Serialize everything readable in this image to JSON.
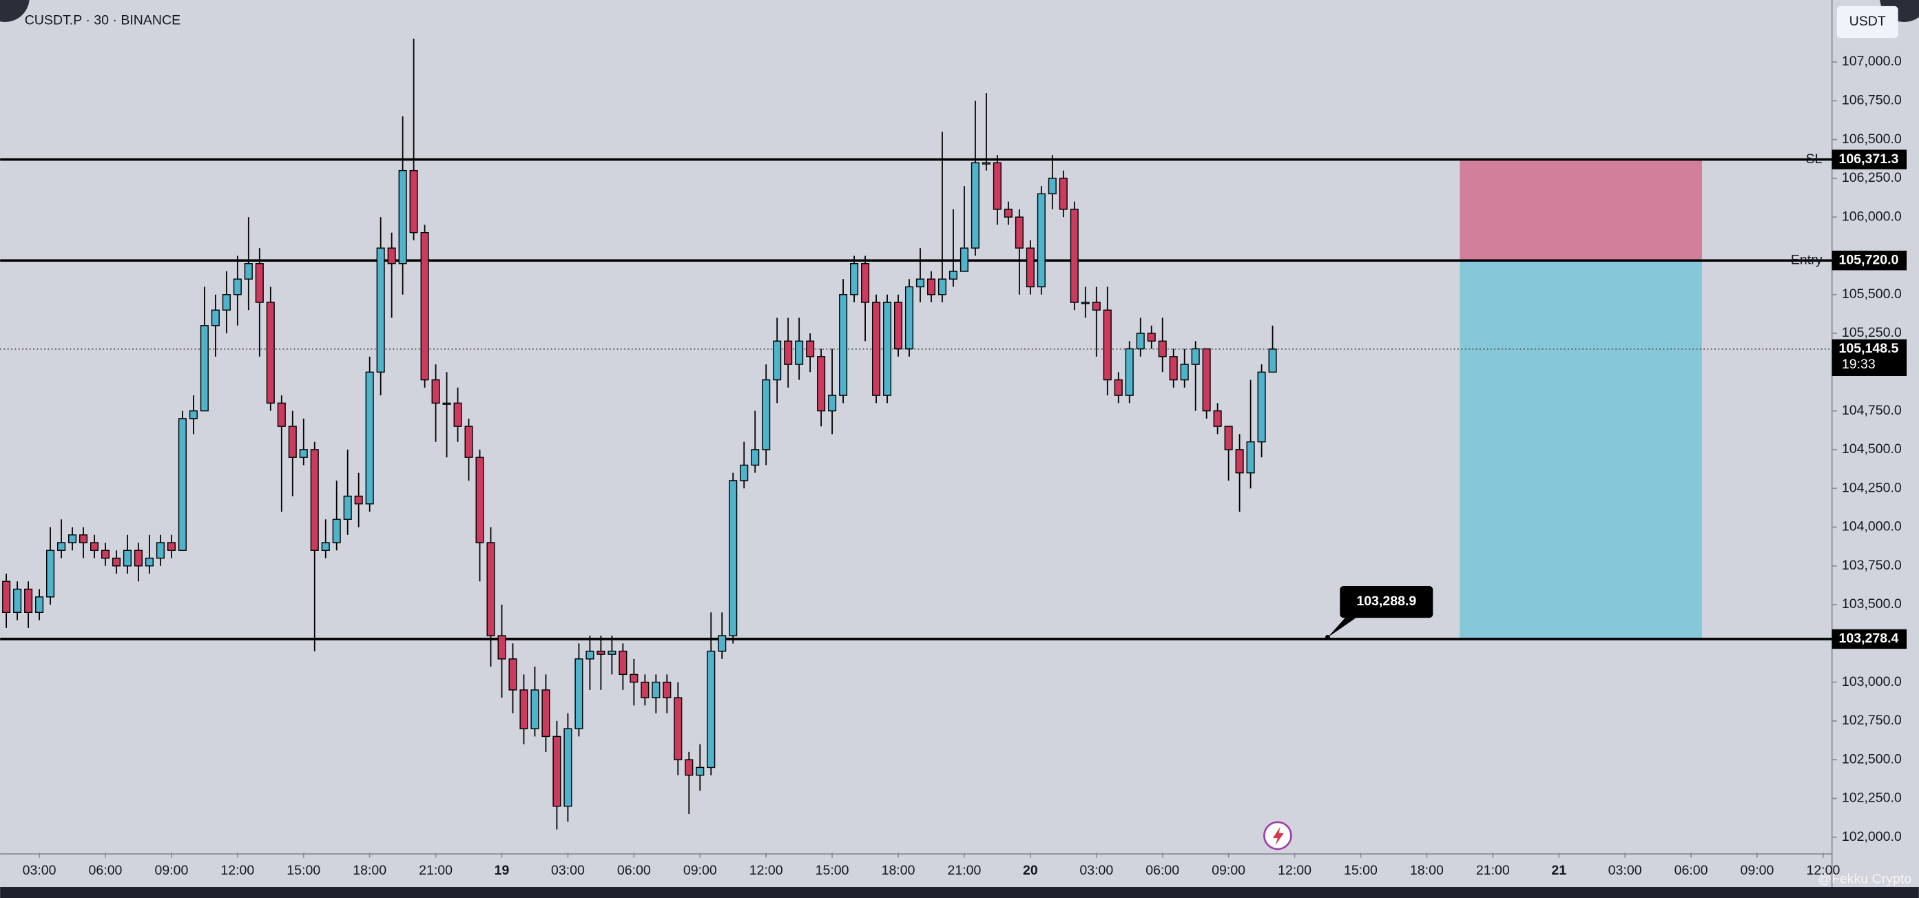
{
  "chart_data": {
    "type": "candlestick",
    "title": "CUSDT.P · 30 · BINANCE",
    "currency": "USDT",
    "watermark": "@Fekku Crypto",
    "up_color": "#4fb3cc",
    "down_color": "#cc3b5e",
    "xlim": [
      -0.56,
      165.8
    ],
    "ylim": [
      101900,
      107400
    ],
    "open": [
      103650,
      103450,
      103600,
      103450,
      103550,
      103850,
      103900,
      103950,
      103900,
      103850,
      103800,
      103750,
      103850,
      103750,
      103800,
      103900,
      103850,
      104700,
      104750,
      105300,
      105400,
      105500,
      105600,
      105700,
      105450,
      104800,
      104650,
      104450,
      104500,
      103850,
      103900,
      104050,
      104200,
      104150,
      105000,
      105800,
      105700,
      106300,
      105900,
      104950,
      104800,
      104800,
      104650,
      104450,
      103900,
      103300,
      103150,
      102950,
      102700,
      102950,
      102650,
      102200,
      102700,
      103150,
      103200,
      103180,
      103200,
      103050,
      103000,
      102900,
      103000,
      102900,
      102500,
      102400,
      102450,
      103200,
      103300,
      104300,
      104400,
      104500,
      104950,
      105200,
      105050,
      105200,
      105100,
      104750,
      104850,
      105500,
      105700,
      105450,
      104850,
      105450,
      105150,
      105550,
      105600,
      105500,
      105600,
      105650,
      105800,
      106350,
      106350,
      106050,
      106000,
      105800,
      105550,
      106150,
      106250,
      106050,
      105450,
      105450,
      105400,
      104950,
      104850,
      105150,
      105250,
      105200,
      105100,
      104950,
      105050,
      105150,
      104750,
      104650,
      104500,
      104350,
      104550,
      105000
    ],
    "high": [
      103700,
      103650,
      103650,
      103600,
      104000,
      104050,
      104000,
      104000,
      103950,
      103900,
      103850,
      103950,
      103900,
      103950,
      103950,
      103950,
      104750,
      104850,
      105550,
      105500,
      105650,
      105750,
      106000,
      105800,
      105550,
      104850,
      104750,
      104700,
      104550,
      104050,
      104300,
      104500,
      104350,
      105100,
      106000,
      105900,
      106650,
      107150,
      105950,
      105050,
      105000,
      104900,
      104700,
      104500,
      104000,
      103500,
      103250,
      103050,
      103100,
      103050,
      102750,
      102800,
      103250,
      103300,
      103300,
      103300,
      103250,
      103150,
      103050,
      103050,
      103050,
      103000,
      102550,
      102600,
      103450,
      103450,
      104350,
      104550,
      104750,
      105050,
      105350,
      105350,
      105350,
      105250,
      105150,
      105150,
      105600,
      105750,
      105750,
      105500,
      105500,
      105500,
      105600,
      105800,
      105650,
      106550,
      106050,
      106200,
      106750,
      106800,
      106400,
      106100,
      106050,
      105850,
      106200,
      106400,
      106300,
      106100,
      105550,
      105550,
      105550,
      105000,
      105200,
      105350,
      105300,
      105350,
      105150,
      105150,
      105200,
      105150,
      104800,
      104650,
      104600,
      104950,
      105050,
      105300
    ],
    "low": [
      103350,
      103400,
      103350,
      103400,
      103500,
      103800,
      103850,
      103800,
      103800,
      103750,
      103700,
      103700,
      103650,
      103700,
      103750,
      103800,
      103850,
      104600,
      104750,
      105100,
      105250,
      105300,
      105400,
      105100,
      104750,
      104100,
      104200,
      104400,
      103200,
      103800,
      103850,
      103950,
      104000,
      104100,
      104850,
      105350,
      105500,
      105850,
      104900,
      104550,
      104450,
      104550,
      104300,
      103650,
      103100,
      102900,
      102800,
      102600,
      102650,
      102550,
      102050,
      102100,
      102650,
      102950,
      102950,
      103050,
      102950,
      102850,
      102850,
      102800,
      102800,
      102400,
      102150,
      102300,
      102400,
      103150,
      103250,
      104250,
      104350,
      104400,
      104800,
      104900,
      104950,
      105000,
      104650,
      104600,
      104800,
      105450,
      105200,
      104800,
      104800,
      105100,
      105100,
      105450,
      105450,
      105450,
      105550,
      105650,
      105750,
      106300,
      105950,
      105950,
      105500,
      105500,
      105500,
      106050,
      106000,
      105400,
      105350,
      105100,
      104850,
      104800,
      104800,
      105100,
      105150,
      105000,
      104900,
      104900,
      104750,
      104700,
      104600,
      104300,
      104100,
      104250,
      104450,
      105000
    ],
    "close": [
      103450,
      103600,
      103450,
      103550,
      103850,
      103900,
      103950,
      103900,
      103850,
      103800,
      103750,
      103850,
      103750,
      103800,
      103900,
      103850,
      104700,
      104750,
      105300,
      105400,
      105500,
      105600,
      105700,
      105450,
      104800,
      104650,
      104450,
      104500,
      103850,
      103900,
      104050,
      104200,
      104150,
      105000,
      105800,
      105700,
      106300,
      105900,
      104950,
      104800,
      104800,
      104650,
      104450,
      103900,
      103300,
      103150,
      102950,
      102700,
      102950,
      102650,
      102200,
      102700,
      103150,
      103200,
      103180,
      103200,
      103050,
      103000,
      102900,
      103000,
      102900,
      102500,
      102400,
      102450,
      103200,
      103300,
      104300,
      104400,
      104500,
      104950,
      105200,
      105050,
      105200,
      105100,
      104750,
      104850,
      105500,
      105700,
      105450,
      104850,
      105450,
      105150,
      105550,
      105600,
      105500,
      105600,
      105650,
      105800,
      106350,
      106350,
      106050,
      106000,
      105800,
      105550,
      106150,
      106250,
      106050,
      105450,
      105450,
      105400,
      104950,
      104850,
      105150,
      105250,
      105200,
      105100,
      104950,
      105050,
      105150,
      104750,
      104650,
      104500,
      104350,
      104550,
      105000,
      105148.5
    ],
    "yticks": [
      {
        "value": 107000,
        "label": "107,000.0"
      },
      {
        "value": 106750,
        "label": "106,750.0"
      },
      {
        "value": 106500,
        "label": "106,500.0"
      },
      {
        "value": 106250,
        "label": "106,250.0"
      },
      {
        "value": 106000,
        "label": "106,000.0"
      },
      {
        "value": 105500,
        "label": "105,500.0"
      },
      {
        "value": 105250,
        "label": "105,250.0"
      },
      {
        "value": 104750,
        "label": "104,750.0"
      },
      {
        "value": 104500,
        "label": "104,500.0"
      },
      {
        "value": 104250,
        "label": "104,250.0"
      },
      {
        "value": 104000,
        "label": "104,000.0"
      },
      {
        "value": 103750,
        "label": "103,750.0"
      },
      {
        "value": 103500,
        "label": "103,500.0"
      },
      {
        "value": 103000,
        "label": "103,000.0"
      },
      {
        "value": 102750,
        "label": "102,750.0"
      },
      {
        "value": 102500,
        "label": "102,500.0"
      },
      {
        "value": 102250,
        "label": "102,250.0"
      },
      {
        "value": 102000,
        "label": "102,000.0"
      }
    ],
    "xticks": [
      {
        "value": 3,
        "label": "03:00"
      },
      {
        "value": 9,
        "label": "06:00"
      },
      {
        "value": 15,
        "label": "09:00"
      },
      {
        "value": 21,
        "label": "12:00"
      },
      {
        "value": 27,
        "label": "15:00"
      },
      {
        "value": 33,
        "label": "18:00"
      },
      {
        "value": 39,
        "label": "21:00"
      },
      {
        "value": 45,
        "label": "19"
      },
      {
        "value": 51,
        "label": "03:00"
      },
      {
        "value": 57,
        "label": "06:00"
      },
      {
        "value": 63,
        "label": "09:00"
      },
      {
        "value": 69,
        "label": "12:00"
      },
      {
        "value": 75,
        "label": "15:00"
      },
      {
        "value": 81,
        "label": "18:00"
      },
      {
        "value": 87,
        "label": "21:00"
      },
      {
        "value": 93,
        "label": "20"
      },
      {
        "value": 99,
        "label": "03:00"
      },
      {
        "value": 105,
        "label": "06:00"
      },
      {
        "value": 111,
        "label": "09:00"
      },
      {
        "value": 117,
        "label": "12:00"
      },
      {
        "value": 123,
        "label": "15:00"
      },
      {
        "value": 129,
        "label": "18:00"
      },
      {
        "value": 135,
        "label": "21:00"
      },
      {
        "value": 141,
        "label": "21"
      },
      {
        "value": 147,
        "label": "03:00"
      },
      {
        "value": 153,
        "label": "06:00"
      },
      {
        "value": 159,
        "label": "09:00"
      },
      {
        "value": 165,
        "label": "12:00"
      }
    ],
    "levels": [
      {
        "name": "SL",
        "value": 106371.3,
        "label": "106,371.3"
      },
      {
        "name": "Entry",
        "value": 105720,
        "label": "105,720.0"
      },
      {
        "value": 103278.4,
        "label": "103,278.4"
      }
    ],
    "last": {
      "value": 105148.5,
      "label": "105,148.5",
      "countdown": "19:33"
    },
    "callout": {
      "x": 120,
      "value": 103288.9,
      "label": "103,288.9"
    },
    "position": {
      "x": [
        132,
        154
      ],
      "stop": 106371.3,
      "entry": 105720,
      "target": 103278.4,
      "stop_color": "#d27f9c",
      "target_color": "#86c7da"
    }
  }
}
